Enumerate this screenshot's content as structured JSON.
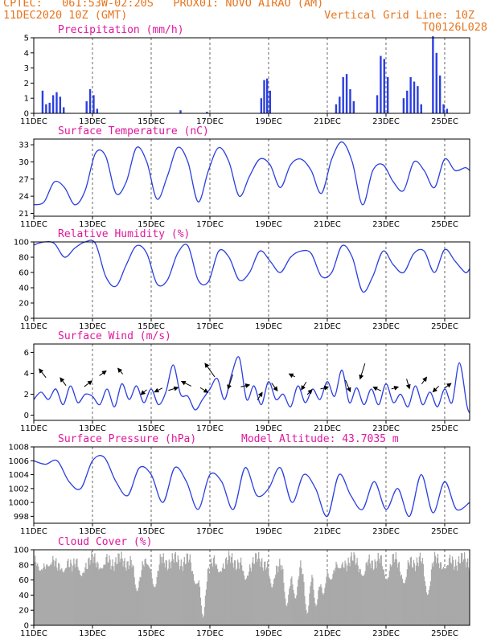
{
  "header": {
    "left_line1": "CPTEC:   061:53W-02:20S   PROX01: NOVO AIRAO (AM)",
    "left_line2": "11DEC2020 10Z (GMT)",
    "right_line2": "Vertical Grid Line: 10Z",
    "right_line3": "TQ0126L028"
  },
  "colors": {
    "header": "#e6751e",
    "title": "#e0179c",
    "series": "#2b3fe0",
    "cloud": "#a9a9a9"
  },
  "chart_data": [
    {
      "type": "bar",
      "title": "Precipitation (mm/h)",
      "xticks": [
        "11DEC",
        "13DEC",
        "15DEC",
        "17DEC",
        "19DEC",
        "21DEC",
        "23DEC",
        "25DEC"
      ],
      "yticks": [
        "0",
        "1",
        "2",
        "3",
        "4",
        "5"
      ],
      "ylim": [
        0,
        5
      ],
      "x_unit": "days since 11DEC 10Z",
      "bars": [
        [
          0.3,
          1.5
        ],
        [
          0.42,
          0.6
        ],
        [
          0.54,
          0.7
        ],
        [
          0.66,
          1.2
        ],
        [
          0.78,
          1.4
        ],
        [
          0.9,
          1.1
        ],
        [
          1.02,
          0.4
        ],
        [
          1.8,
          0.8
        ],
        [
          1.92,
          1.6
        ],
        [
          2.04,
          1.2
        ],
        [
          2.16,
          0.3
        ],
        [
          5.0,
          0.2
        ],
        [
          5.9,
          0.1
        ],
        [
          7.75,
          1.0
        ],
        [
          7.85,
          2.2
        ],
        [
          7.95,
          2.3
        ],
        [
          8.05,
          1.5
        ],
        [
          10.3,
          0.6
        ],
        [
          10.42,
          1.1
        ],
        [
          10.54,
          2.4
        ],
        [
          10.66,
          2.6
        ],
        [
          10.78,
          1.6
        ],
        [
          10.9,
          0.8
        ],
        [
          11.7,
          1.2
        ],
        [
          11.82,
          3.8
        ],
        [
          11.94,
          3.6
        ],
        [
          12.06,
          2.4
        ],
        [
          12.6,
          1.0
        ],
        [
          12.72,
          1.5
        ],
        [
          12.84,
          2.4
        ],
        [
          12.96,
          2.1
        ],
        [
          13.08,
          1.8
        ],
        [
          13.2,
          0.6
        ],
        [
          13.6,
          5.1
        ],
        [
          13.72,
          4.0
        ],
        [
          13.84,
          2.5
        ],
        [
          13.96,
          0.6
        ],
        [
          14.08,
          0.3
        ]
      ]
    },
    {
      "type": "line",
      "title": "Surface Temperature (nC)",
      "xticks": [
        "11DEC",
        "13DEC",
        "15DEC",
        "17DEC",
        "19DEC",
        "21DEC",
        "23DEC",
        "25DEC"
      ],
      "yticks": [
        "21",
        "24",
        "27",
        "30",
        "33"
      ],
      "ylim": [
        20.5,
        34
      ],
      "x": [
        0,
        0.35,
        0.7,
        1.05,
        1.4,
        1.75,
        2.1,
        2.45,
        2.8,
        3.15,
        3.5,
        3.85,
        4.2,
        4.55,
        4.9,
        5.25,
        5.6,
        5.95,
        6.3,
        6.65,
        7.0,
        7.35,
        7.7,
        8.05,
        8.4,
        8.75,
        9.1,
        9.45,
        9.8,
        10.15,
        10.5,
        10.85,
        11.2,
        11.55,
        11.9,
        12.25,
        12.6,
        12.95,
        13.3,
        13.65,
        14.0,
        14.35,
        14.7,
        14.85
      ],
      "values": [
        22.5,
        23.0,
        26.5,
        25.5,
        22.5,
        25.0,
        31.5,
        31.0,
        24.5,
        26.5,
        32.5,
        30.0,
        23.5,
        27.5,
        32.5,
        30.0,
        23.0,
        28.5,
        32.5,
        30.0,
        24.0,
        27.5,
        30.5,
        29.5,
        25.5,
        29.5,
        30.5,
        28.5,
        24.5,
        30.5,
        33.5,
        30.0,
        22.5,
        28.5,
        29.5,
        26.5,
        25.0,
        30.0,
        28.5,
        25.5,
        30.5,
        28.5,
        29.0,
        28.5
      ]
    },
    {
      "type": "line",
      "title": "Relative Humidity (%)",
      "xticks": [
        "11DEC",
        "13DEC",
        "15DEC",
        "17DEC",
        "19DEC",
        "21DEC",
        "23DEC",
        "25DEC"
      ],
      "yticks": [
        "0",
        "20",
        "40",
        "60",
        "80",
        "100"
      ],
      "ylim": [
        0,
        100
      ],
      "x": [
        0,
        0.35,
        0.7,
        1.05,
        1.4,
        1.75,
        2.1,
        2.45,
        2.8,
        3.15,
        3.5,
        3.85,
        4.2,
        4.55,
        4.9,
        5.25,
        5.6,
        5.95,
        6.3,
        6.65,
        7.0,
        7.35,
        7.7,
        8.05,
        8.4,
        8.75,
        9.1,
        9.45,
        9.8,
        10.15,
        10.5,
        10.85,
        11.2,
        11.55,
        11.9,
        12.25,
        12.6,
        12.95,
        13.3,
        13.65,
        14.0,
        14.35,
        14.7,
        14.85
      ],
      "values": [
        96,
        100,
        98,
        80,
        92,
        100,
        98,
        55,
        42,
        70,
        95,
        85,
        45,
        50,
        85,
        95,
        50,
        48,
        88,
        80,
        50,
        60,
        88,
        75,
        60,
        80,
        88,
        85,
        55,
        60,
        95,
        80,
        35,
        55,
        88,
        70,
        60,
        85,
        88,
        60,
        90,
        75,
        60,
        65
      ]
    },
    {
      "type": "line",
      "title": "Surface Wind (m/s)",
      "xticks": [
        "11DEC",
        "13DEC",
        "15DEC",
        "17DEC",
        "19DEC",
        "21DEC",
        "23DEC",
        "25DEC"
      ],
      "yticks": [
        "0",
        "2",
        "4",
        "6"
      ],
      "ylim": [
        -0.5,
        6.8
      ],
      "x": [
        0,
        0.25,
        0.5,
        0.75,
        1.0,
        1.25,
        1.5,
        1.75,
        2.0,
        2.25,
        2.5,
        2.75,
        3.0,
        3.25,
        3.5,
        3.75,
        4.0,
        4.25,
        4.5,
        4.75,
        5.0,
        5.25,
        5.5,
        5.75,
        6.0,
        6.25,
        6.5,
        6.75,
        7.0,
        7.25,
        7.5,
        7.75,
        8.0,
        8.25,
        8.5,
        8.75,
        9.0,
        9.25,
        9.5,
        9.75,
        10.0,
        10.25,
        10.5,
        10.75,
        11.0,
        11.25,
        11.5,
        11.75,
        12.0,
        12.25,
        12.5,
        12.75,
        13.0,
        13.25,
        13.5,
        13.75,
        14.0,
        14.25,
        14.5,
        14.75,
        14.85
      ],
      "values": [
        1.5,
        2.2,
        1.5,
        2.5,
        1.0,
        2.8,
        1.2,
        2.0,
        1.8,
        1.0,
        2.5,
        0.8,
        3.0,
        1.5,
        2.8,
        1.2,
        2.5,
        1.0,
        2.2,
        4.8,
        2.0,
        1.8,
        0.5,
        1.5,
        2.5,
        3.5,
        1.5,
        4.0,
        5.5,
        1.5,
        2.8,
        1.0,
        3.2,
        1.5,
        2.0,
        0.8,
        2.8,
        1.2,
        2.5,
        1.5,
        3.2,
        1.8,
        4.3,
        1.2,
        2.6,
        1.0,
        2.5,
        1.0,
        3.0,
        1.2,
        2.0,
        0.8,
        2.8,
        1.0,
        2.2,
        0.8,
        2.5,
        1.2,
        5.0,
        1.0,
        0.2
      ],
      "arrows": [
        [
          0.3,
          4.0,
          -0.7,
          0.9
        ],
        [
          1.0,
          3.2,
          -0.6,
          0.8
        ],
        [
          1.85,
          3.0,
          0.8,
          0.6
        ],
        [
          2.35,
          4.0,
          0.7,
          0.5
        ],
        [
          2.95,
          4.2,
          -0.5,
          0.6
        ],
        [
          3.75,
          2.2,
          -0.6,
          -0.5
        ],
        [
          4.25,
          2.4,
          -0.8,
          -0.4
        ],
        [
          4.75,
          2.5,
          1.0,
          0.3
        ],
        [
          5.2,
          3.0,
          -1.0,
          0.5
        ],
        [
          5.8,
          2.4,
          0.8,
          -0.5
        ],
        [
          6.0,
          4.3,
          -1.0,
          1.4
        ],
        [
          6.7,
          3.2,
          -0.5,
          -1.5
        ],
        [
          7.2,
          2.8,
          0.9,
          0.2
        ],
        [
          7.7,
          1.8,
          0.5,
          0.8
        ],
        [
          8.2,
          2.7,
          0.6,
          -0.8
        ],
        [
          8.8,
          3.8,
          -0.6,
          0.3
        ],
        [
          9.2,
          2.8,
          -0.5,
          -0.8
        ],
        [
          9.4,
          2.2,
          0.5,
          0.5
        ],
        [
          9.9,
          2.6,
          0.8,
          0.2
        ],
        [
          10.7,
          2.8,
          0.5,
          -1.2
        ],
        [
          11.2,
          4.2,
          -0.5,
          -1.6
        ],
        [
          11.7,
          2.5,
          -0.8,
          0.4
        ],
        [
          12.3,
          2.6,
          0.7,
          0.2
        ],
        [
          12.75,
          3.0,
          0.3,
          -1.0
        ],
        [
          13.3,
          3.3,
          0.5,
          0.7
        ],
        [
          13.7,
          2.5,
          -0.6,
          -0.6
        ],
        [
          14.1,
          2.8,
          0.7,
          0.5
        ]
      ]
    },
    {
      "type": "line",
      "title": "Surface Pressure (hPa)",
      "annotation": "Model Altitude: 43.7035 m",
      "xticks": [
        "11DEC",
        "13DEC",
        "15DEC",
        "17DEC",
        "19DEC",
        "21DEC",
        "23DEC",
        "25DEC"
      ],
      "yticks": [
        "998",
        "1000",
        "1002",
        "1004",
        "1006",
        "1008"
      ],
      "ylim": [
        997,
        1008
      ],
      "x": [
        0,
        0.4,
        0.8,
        1.2,
        1.6,
        2.0,
        2.4,
        2.8,
        3.2,
        3.6,
        4.0,
        4.4,
        4.8,
        5.2,
        5.6,
        6.0,
        6.4,
        6.8,
        7.2,
        7.6,
        8.0,
        8.4,
        8.8,
        9.2,
        9.6,
        10.0,
        10.4,
        10.8,
        11.2,
        11.6,
        12.0,
        12.4,
        12.8,
        13.2,
        13.6,
        14.0,
        14.4,
        14.85
      ],
      "values": [
        1006,
        1005.5,
        1006,
        1003,
        1002,
        1006,
        1006.5,
        1003,
        1001,
        1005,
        1004,
        1000,
        1005,
        1003,
        999,
        1004,
        1003,
        999,
        1005,
        1001,
        1002,
        1005,
        1000,
        1004,
        1002,
        998,
        1004,
        1001,
        999,
        1003,
        999,
        1002,
        998,
        1004,
        998.5,
        1003,
        999,
        1000
      ]
    },
    {
      "type": "bar",
      "title": "Cloud Cover (%)",
      "xticks": [
        "11DEC",
        "13DEC",
        "15DEC",
        "17DEC",
        "19DEC",
        "21DEC",
        "23DEC",
        "25DEC"
      ],
      "yticks": [
        "0",
        "20",
        "40",
        "60",
        "80",
        "100"
      ],
      "ylim": [
        0,
        100
      ],
      "base_level": 85,
      "dips": [
        [
          0.2,
          72
        ],
        [
          0.5,
          78
        ],
        [
          1.0,
          70
        ],
        [
          1.6,
          65
        ],
        [
          2.3,
          75
        ],
        [
          3.5,
          45
        ],
        [
          3.9,
          80
        ],
        [
          4.1,
          50
        ],
        [
          5.5,
          55
        ],
        [
          5.75,
          10
        ],
        [
          6.3,
          70
        ],
        [
          7.2,
          60
        ],
        [
          8.1,
          50
        ],
        [
          8.6,
          25
        ],
        [
          8.9,
          35
        ],
        [
          9.3,
          15
        ],
        [
          9.6,
          25
        ],
        [
          9.85,
          40
        ],
        [
          10.1,
          60
        ],
        [
          10.4,
          75
        ],
        [
          11.2,
          65
        ],
        [
          12.0,
          60
        ],
        [
          12.6,
          55
        ],
        [
          13.4,
          40
        ],
        [
          14.0,
          75
        ]
      ]
    }
  ]
}
